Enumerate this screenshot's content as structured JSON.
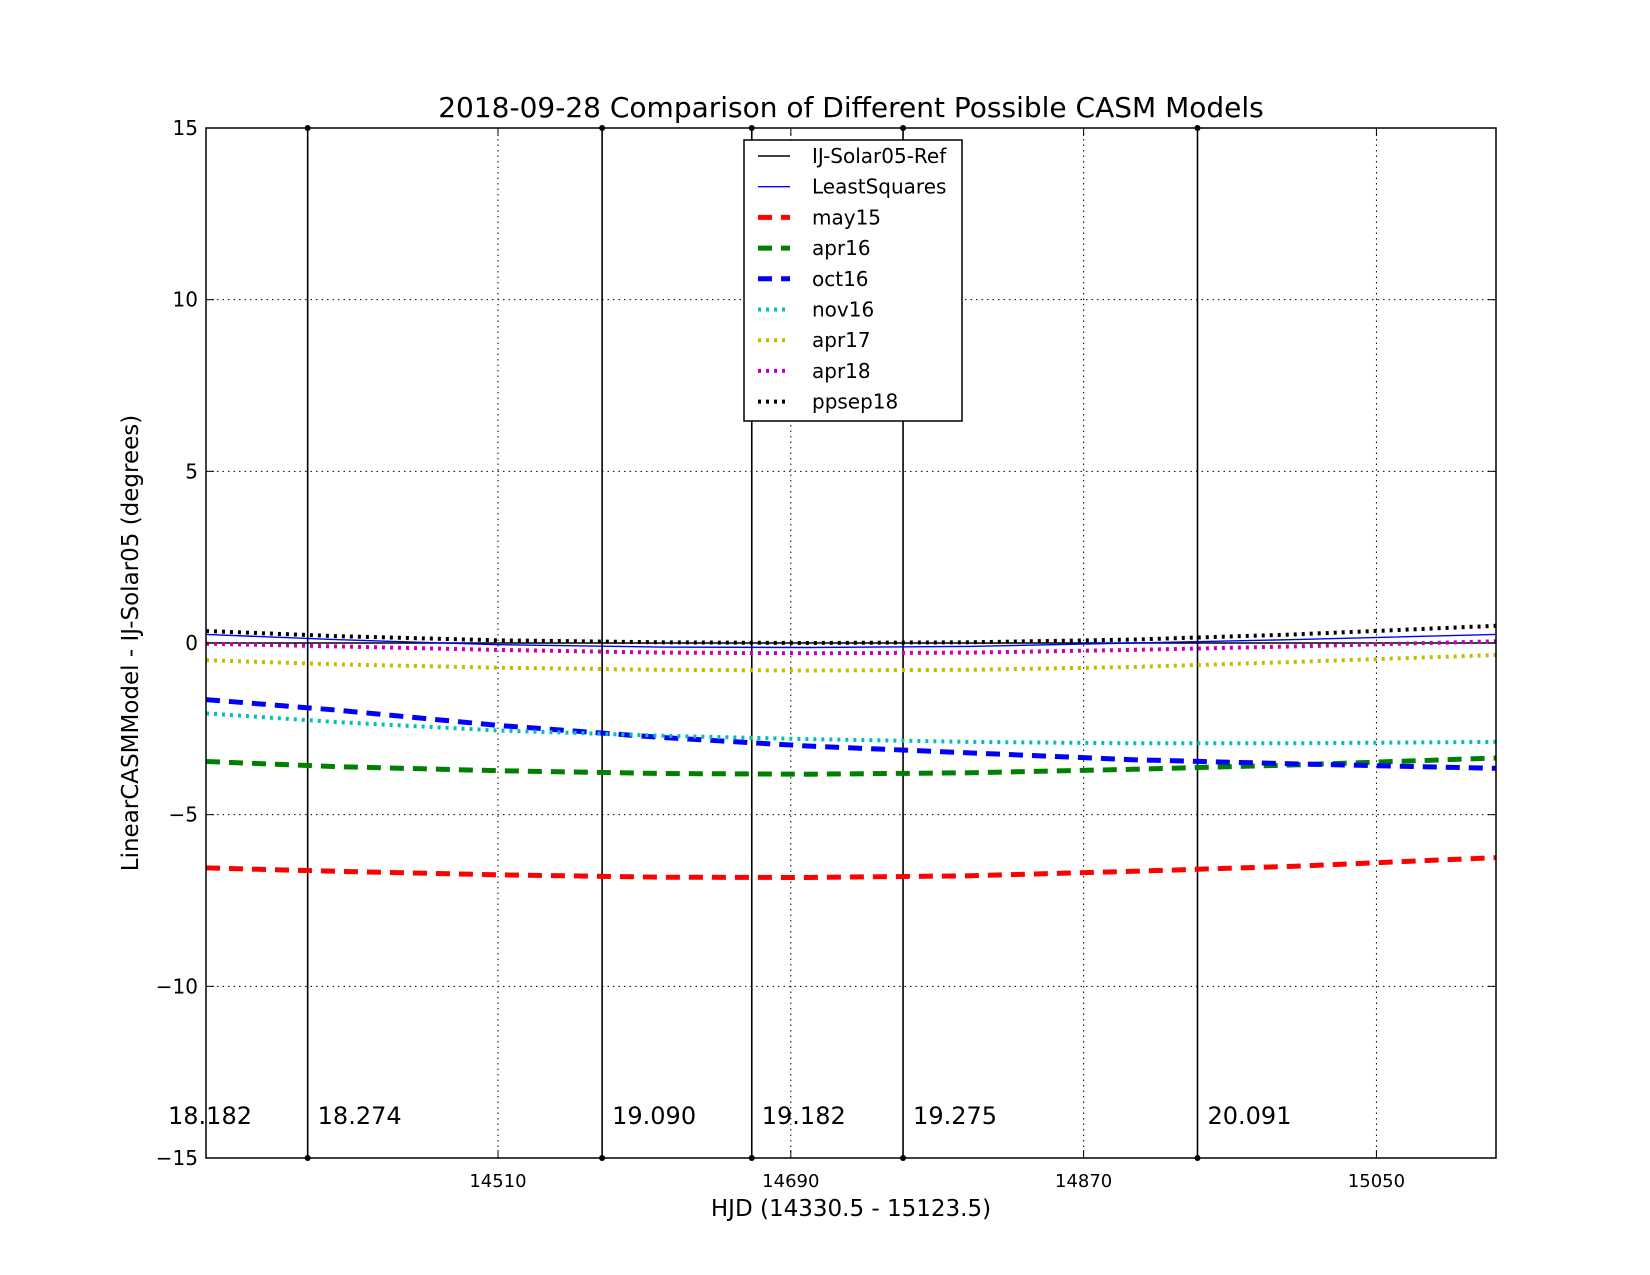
{
  "chart_data": {
    "type": "line",
    "title": "2018-09-28 Comparison of Different Possible CASM Models",
    "xlabel": "HJD (14330.5 - 15123.5)",
    "ylabel": "LinearCASMModel - IJ-Solar05 (degrees)",
    "xlim": [
      14330.5,
      15123.5
    ],
    "ylim": [
      -15,
      15
    ],
    "xticks": [
      14510,
      14690,
      14870,
      15050
    ],
    "yticks": [
      -15,
      -10,
      -5,
      0,
      5,
      10,
      15
    ],
    "ytick_labels": [
      "−15",
      "−10",
      "−5",
      "0",
      "5",
      "10",
      "15"
    ],
    "grid": true,
    "legend_location": "upper center",
    "x": [
      14330.5,
      14410,
      14510,
      14610,
      14700,
      14800,
      14900,
      15000,
      15123.5
    ],
    "series": [
      {
        "name": "IJ-Solar05-Ref",
        "color": "#000000",
        "style": "solid",
        "values": [
          0,
          0,
          0,
          0,
          0,
          0,
          0,
          0,
          0
        ]
      },
      {
        "name": "LeastSquares",
        "color": "#0000ff",
        "style": "solid",
        "values": [
          0.25,
          0.1,
          -0.05,
          -0.12,
          -0.13,
          -0.1,
          0,
          0.1,
          0.25
        ]
      },
      {
        "name": "may15",
        "color": "#ff0000",
        "style": "dashed",
        "values": [
          -6.55,
          -6.65,
          -6.75,
          -6.82,
          -6.83,
          -6.78,
          -6.65,
          -6.5,
          -6.25
        ]
      },
      {
        "name": "apr16",
        "color": "#008000",
        "style": "dashed",
        "values": [
          -3.45,
          -3.6,
          -3.72,
          -3.8,
          -3.82,
          -3.78,
          -3.68,
          -3.55,
          -3.35
        ]
      },
      {
        "name": "oct16",
        "color": "#0000ff",
        "style": "dashed",
        "values": [
          -1.65,
          -1.95,
          -2.4,
          -2.75,
          -3.0,
          -3.2,
          -3.4,
          -3.52,
          -3.65
        ]
      },
      {
        "name": "nov16",
        "color": "#00bfbf",
        "style": "dotted",
        "values": [
          -2.05,
          -2.3,
          -2.55,
          -2.7,
          -2.8,
          -2.88,
          -2.92,
          -2.92,
          -2.88
        ]
      },
      {
        "name": "apr17",
        "color": "#bfbf00",
        "style": "dotted",
        "values": [
          -0.5,
          -0.62,
          -0.72,
          -0.78,
          -0.8,
          -0.78,
          -0.7,
          -0.55,
          -0.35
        ]
      },
      {
        "name": "apr18",
        "color": "#bf00bf",
        "style": "dotted",
        "values": [
          -0.02,
          -0.1,
          -0.2,
          -0.28,
          -0.3,
          -0.28,
          -0.2,
          -0.1,
          0.05
        ]
      },
      {
        "name": "ppsep18",
        "color": "#000000",
        "style": "dotted",
        "values": [
          0.35,
          0.2,
          0.08,
          0.02,
          0.0,
          0.02,
          0.1,
          0.25,
          0.5
        ]
      }
    ],
    "vertical_markers": [
      {
        "x": 14393,
        "label": "18.274"
      },
      {
        "x": 14574,
        "label": "19.090"
      },
      {
        "x": 14666,
        "label": "19.182"
      },
      {
        "x": 14759,
        "label": "19.275"
      },
      {
        "x": 14940,
        "label": "20.091"
      }
    ],
    "extra_labels": [
      {
        "x": 14330.5,
        "label": "18.182"
      }
    ]
  }
}
